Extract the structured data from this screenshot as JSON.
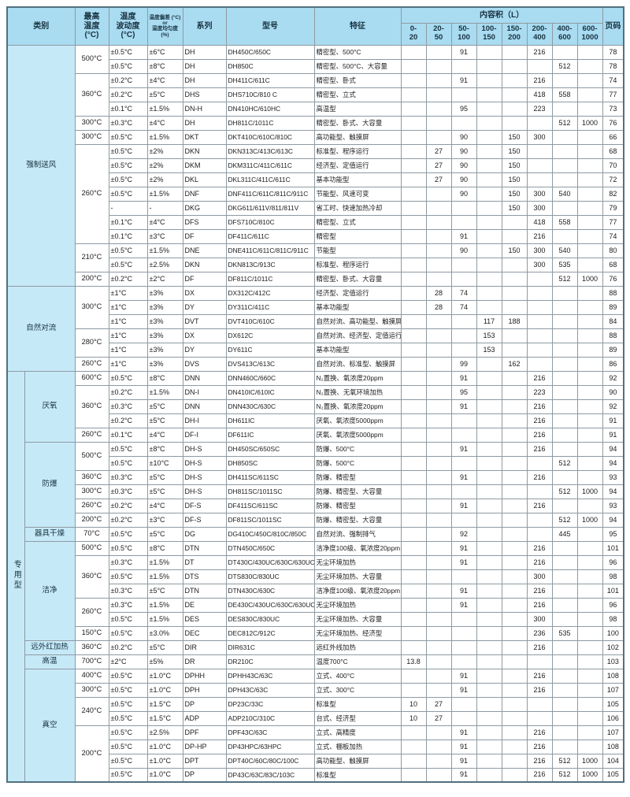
{
  "header": {
    "category": "类别",
    "max_temp": "最高\n温度\n(°C)",
    "fluctuation": "温度\n波动度\n(°C)",
    "deviation": "温度偏差 (°C) or\n温度均匀度 (%)",
    "series": "系列",
    "model": "型号",
    "feature": "特征",
    "capacity": "内容积（L）",
    "page": "页码",
    "ranges": [
      "0-\n20",
      "20-\n50",
      "50-\n100",
      "100-\n150",
      "150-\n200",
      "200-\n400",
      "400-\n600",
      "600-\n1000"
    ]
  },
  "colors": {
    "header_blue": "#a9dbf1",
    "category_blue": "#c6e9f8",
    "grid": "#8e9aa2",
    "outer_border": "#51707f"
  },
  "rows": [
    {
      "cat": {
        "label": "强制送风",
        "rowspan": 17,
        "colspan": 2
      },
      "temp": {
        "label": "500°C",
        "rowspan": 2
      },
      "fluct": "±0.5°C",
      "dev": "±6°C",
      "series": "DH",
      "model": "DH450C/650C",
      "feature": "精密型、500°C",
      "caps": [
        "",
        "",
        "91",
        "",
        "",
        "216",
        "",
        ""
      ],
      "page": "78"
    },
    {
      "fluct": "±0.5°C",
      "dev": "±8°C",
      "series": "DH",
      "model": "DH850C",
      "feature": "精密型、500°C、大容量",
      "caps": [
        "",
        "",
        "",
        "",
        "",
        "",
        "512",
        ""
      ],
      "page": "78"
    },
    {
      "temp": {
        "label": "360°C",
        "rowspan": 3
      },
      "fluct": "±0.2°C",
      "dev": "±4°C",
      "series": "DH",
      "model": "DH411C/611C",
      "feature": "精密型、卧式",
      "caps": [
        "",
        "",
        "91",
        "",
        "",
        "216",
        "",
        ""
      ],
      "page": "74"
    },
    {
      "fluct": "±0.2°C",
      "dev": "±5°C",
      "series": "DHS",
      "model": "DHS710C/810 C",
      "feature": "精密型、立式",
      "caps": [
        "",
        "",
        "",
        "",
        "",
        "418",
        "558",
        ""
      ],
      "page": "77"
    },
    {
      "fluct": "±0.1°C",
      "dev": "±1.5%",
      "series": "DN-H",
      "model": "DN410HC/610HC",
      "feature": "高温型",
      "caps": [
        "",
        "",
        "95",
        "",
        "",
        "223",
        "",
        ""
      ],
      "page": "73"
    },
    {
      "temp": {
        "label": "300°C",
        "rowspan": 1
      },
      "fluct": "±0.3°C",
      "dev": "±4°C",
      "series": "DH",
      "model": "DH811C/1011C",
      "feature": "精密型、卧式、大容量",
      "caps": [
        "",
        "",
        "",
        "",
        "",
        "",
        "512",
        "1000"
      ],
      "page": "76"
    },
    {
      "temp": {
        "label": "300°C",
        "rowspan": 1
      },
      "fluct": "±0.5°C",
      "dev": "±1.5%",
      "series": "DKT",
      "model": "DKT410C/610C/810C",
      "feature": "高功能型、触摸屏",
      "caps": [
        "",
        "",
        "90",
        "",
        "150",
        "300",
        "",
        ""
      ],
      "page": "66"
    },
    {
      "temp": {
        "label": "260°C",
        "rowspan": 7
      },
      "fluct": "±0.5°C",
      "dev": "±2%",
      "series": "DKN",
      "model": "DKN313C/413C/613C",
      "feature": "标准型、程序运行",
      "caps": [
        "",
        "27",
        "90",
        "",
        "150",
        "",
        "",
        ""
      ],
      "page": "68"
    },
    {
      "fluct": "±0.5°C",
      "dev": "±2%",
      "series": "DKM",
      "model": "DKM311C/411C/611C",
      "feature": "经济型、定值运行",
      "caps": [
        "",
        "27",
        "90",
        "",
        "150",
        "",
        "",
        ""
      ],
      "page": "70"
    },
    {
      "fluct": "±0.5°C",
      "dev": "±2%",
      "series": "DKL",
      "model": "DKL311C/411C/611C",
      "feature": "基本功能型",
      "caps": [
        "",
        "27",
        "90",
        "",
        "150",
        "",
        "",
        ""
      ],
      "page": "72"
    },
    {
      "fluct": "±0.5°C",
      "dev": "±1.5%",
      "series": "DNF",
      "model": "DNF411C/611C/811C/911C",
      "feature": "节能型、风速可变",
      "caps": [
        "",
        "",
        "90",
        "",
        "150",
        "300",
        "540",
        ""
      ],
      "page": "82"
    },
    {
      "fluct": "-",
      "dev": "-",
      "series": "DKG",
      "model": "DKG611/611V/811/811V",
      "feature": "省工时、快速加热冷却",
      "caps": [
        "",
        "",
        "",
        "",
        "150",
        "300",
        "",
        ""
      ],
      "page": "79"
    },
    {
      "fluct": "±0.1°C",
      "dev": "±4°C",
      "series": "DFS",
      "model": "DFS710C/810C",
      "feature": "精密型、立式",
      "caps": [
        "",
        "",
        "",
        "",
        "",
        "418",
        "558",
        ""
      ],
      "page": "77"
    },
    {
      "fluct": "±0.1°C",
      "dev": "±3°C",
      "series": "DF",
      "model": "DF411C/611C",
      "feature": "精密型",
      "caps": [
        "",
        "",
        "91",
        "",
        "",
        "216",
        "",
        ""
      ],
      "page": "74"
    },
    {
      "temp": {
        "label": "210°C",
        "rowspan": 2
      },
      "fluct": "±0.5°C",
      "dev": "±1.5%",
      "series": "DNE",
      "model": "DNE411C/611C/811C/911C",
      "feature": "节能型",
      "caps": [
        "",
        "",
        "90",
        "",
        "150",
        "300",
        "540",
        ""
      ],
      "page": "80"
    },
    {
      "fluct": "±0.5°C",
      "dev": "±2.5%",
      "series": "DKN",
      "model": "DKN813C/913C",
      "feature": "标准型、程序运行",
      "caps": [
        "",
        "",
        "",
        "",
        "",
        "300",
        "535",
        ""
      ],
      "page": "68"
    },
    {
      "temp": {
        "label": "200°C",
        "rowspan": 1
      },
      "fluct": "±0.2°C",
      "dev": "±2°C",
      "series": "DF",
      "model": "DF811C/1011C",
      "feature": "精密型、卧式、大容量",
      "caps": [
        "",
        "",
        "",
        "",
        "",
        "",
        "512",
        "1000"
      ],
      "page": "76"
    },
    {
      "cat": {
        "label": "自然对流",
        "rowspan": 6,
        "colspan": 2
      },
      "temp": {
        "label": "300°C",
        "rowspan": 3
      },
      "fluct": "±1°C",
      "dev": "±3%",
      "series": "DX",
      "model": "DX312C/412C",
      "feature": "经济型、定值运行",
      "caps": [
        "",
        "28",
        "74",
        "",
        "",
        "",
        "",
        ""
      ],
      "page": "88"
    },
    {
      "fluct": "±1°C",
      "dev": "±3%",
      "series": "DY",
      "model": "DY311C/411C",
      "feature": "基本功能型",
      "caps": [
        "",
        "28",
        "74",
        "",
        "",
        "",
        "",
        ""
      ],
      "page": "89"
    },
    {
      "fluct": "±1°C",
      "dev": "±3%",
      "series": "DVT",
      "model": "DVT410C/610C",
      "feature": "自然对流、高功能型、触摸屏",
      "caps": [
        "",
        "",
        "",
        "117",
        "188",
        "",
        "",
        ""
      ],
      "page": "84"
    },
    {
      "temp": {
        "label": "280°C",
        "rowspan": 2
      },
      "fluct": "±1°C",
      "dev": "±3%",
      "series": "DX",
      "model": "DX612C",
      "feature": "自然对流、经济型、定值运行",
      "caps": [
        "",
        "",
        "",
        "153",
        "",
        "",
        "",
        ""
      ],
      "page": "88"
    },
    {
      "fluct": "±1°C",
      "dev": "±3%",
      "series": "DY",
      "model": "DY611C",
      "feature": "基本功能型",
      "caps": [
        "",
        "",
        "",
        "153",
        "",
        "",
        "",
        ""
      ],
      "page": "89"
    },
    {
      "temp": {
        "label": "260°C",
        "rowspan": 1
      },
      "fluct": "±1°C",
      "dev": "±3%",
      "series": "DVS",
      "model": "DVS413C/613C",
      "feature": "自然对流、标准型、触摸屏",
      "caps": [
        "",
        "",
        "99",
        "",
        "162",
        "",
        "",
        ""
      ],
      "page": "86"
    },
    {
      "cat": {
        "label": "专用型",
        "rowspan": 29,
        "vertical": true
      },
      "subcat": {
        "label": "厌氧",
        "rowspan": 5
      },
      "temp": {
        "label": "600°C",
        "rowspan": 1
      },
      "fluct": "±0.5°C",
      "dev": "±8°C",
      "series": "DNN",
      "model": "DNN460C/660C",
      "feature": "N₂置换、氧浓度20ppm",
      "caps": [
        "",
        "",
        "91",
        "",
        "",
        "216",
        "",
        ""
      ],
      "page": "92"
    },
    {
      "temp": {
        "label": "360°C",
        "rowspan": 3
      },
      "fluct": "±0.2°C",
      "dev": "±1.5%",
      "series": "DN-I",
      "model": "DN410IC/610IC",
      "feature": "N₂置换、无氧环境加热",
      "caps": [
        "",
        "",
        "95",
        "",
        "",
        "223",
        "",
        ""
      ],
      "page": "90"
    },
    {
      "fluct": "±0.3°C",
      "dev": "±5°C",
      "series": "DNN",
      "model": "DNN430C/630C",
      "feature": "N₂置换、氧浓度20ppm",
      "caps": [
        "",
        "",
        "91",
        "",
        "",
        "216",
        "",
        ""
      ],
      "page": "92"
    },
    {
      "fluct": "±0.2°C",
      "dev": "±5°C",
      "series": "DH-I",
      "model": "DH611IC",
      "feature": "厌氧、氧浓度5000ppm",
      "caps": [
        "",
        "",
        "",
        "",
        "",
        "216",
        "",
        ""
      ],
      "page": "91"
    },
    {
      "temp": {
        "label": "260°C",
        "rowspan": 1
      },
      "fluct": "±0.1°C",
      "dev": "±4°C",
      "series": "DF-I",
      "model": "DF611IC",
      "feature": "厌氧、氧浓度5000ppm",
      "caps": [
        "",
        "",
        "",
        "",
        "",
        "216",
        "",
        ""
      ],
      "page": "91"
    },
    {
      "subcat": {
        "label": "防爆",
        "rowspan": 6
      },
      "temp": {
        "label": "500°C",
        "rowspan": 2
      },
      "fluct": "±0.5°C",
      "dev": "±8°C",
      "series": "DH-S",
      "model": "DH450SC/650SC",
      "feature": "防爆、500°C",
      "caps": [
        "",
        "",
        "91",
        "",
        "",
        "216",
        "",
        ""
      ],
      "page": "94"
    },
    {
      "fluct": "±0.5°C",
      "dev": "±10°C",
      "series": "DH-S",
      "model": "DH850SC",
      "feature": "防爆、500°C",
      "caps": [
        "",
        "",
        "",
        "",
        "",
        "",
        "512",
        ""
      ],
      "page": "94"
    },
    {
      "temp": {
        "label": "360°C",
        "rowspan": 1
      },
      "fluct": "±0.3°C",
      "dev": "±5°C",
      "series": "DH-S",
      "model": "DH411SC/611SC",
      "feature": "防爆、精密型",
      "caps": [
        "",
        "",
        "91",
        "",
        "",
        "216",
        "",
        ""
      ],
      "page": "93"
    },
    {
      "temp": {
        "label": "300°C",
        "rowspan": 1
      },
      "fluct": "±0.3°C",
      "dev": "±5°C",
      "series": "DH-S",
      "model": "DH811SC/1011SC",
      "feature": "防爆、精密型、大容量",
      "caps": [
        "",
        "",
        "",
        "",
        "",
        "",
        "512",
        "1000"
      ],
      "page": "94"
    },
    {
      "temp": {
        "label": "260°C",
        "rowspan": 1
      },
      "fluct": "±0.2°C",
      "dev": "±4°C",
      "series": "DF-S",
      "model": "DF411SC/611SC",
      "feature": "防爆、精密型",
      "caps": [
        "",
        "",
        "91",
        "",
        "",
        "216",
        "",
        ""
      ],
      "page": "93"
    },
    {
      "temp": {
        "label": "200°C",
        "rowspan": 1
      },
      "fluct": "±0.2°C",
      "dev": "±3°C",
      "series": "DF-S",
      "model": "DF811SC/1011SC",
      "feature": "防爆、精密型、大容量",
      "caps": [
        "",
        "",
        "",
        "",
        "",
        "",
        "512",
        "1000"
      ],
      "page": "94"
    },
    {
      "subcat": {
        "label": "器具干燥",
        "rowspan": 1
      },
      "temp": {
        "label": "70°C",
        "rowspan": 1
      },
      "fluct": "±0.5°C",
      "dev": "±5°C",
      "series": "DG",
      "model": "DG410C/450C/810C/850C",
      "feature": "自然对流、强制排气",
      "caps": [
        "",
        "",
        "92",
        "",
        "",
        "",
        "445",
        ""
      ],
      "page": "95"
    },
    {
      "subcat": {
        "label": "洁净",
        "rowspan": 7
      },
      "temp": {
        "label": "500°C",
        "rowspan": 1
      },
      "fluct": "±0.5°C",
      "dev": "±8°C",
      "series": "DTN",
      "model": "DTN450C/650C",
      "feature": "洁净度100级、氧浓度20ppm",
      "caps": [
        "",
        "",
        "91",
        "",
        "",
        "216",
        "",
        ""
      ],
      "page": "101"
    },
    {
      "temp": {
        "label": "360°C",
        "rowspan": 3
      },
      "fluct": "±0.3°C",
      "dev": "±1.5%",
      "series": "DT",
      "model": "DT430C/430UC/630C/630UC",
      "feature": "无尘环境加热",
      "caps": [
        "",
        "",
        "91",
        "",
        "",
        "216",
        "",
        ""
      ],
      "page": "96"
    },
    {
      "fluct": "±0.5°C",
      "dev": "±1.5%",
      "series": "DTS",
      "model": "DTS830C/830UC",
      "feature": "无尘环境加热、大容量",
      "caps": [
        "",
        "",
        "",
        "",
        "",
        "300",
        "",
        ""
      ],
      "page": "98"
    },
    {
      "fluct": "±0.3°C",
      "dev": "±5°C",
      "series": "DTN",
      "model": "DTN430C/630C",
      "feature": "洁净度100级、氧浓度20ppm",
      "caps": [
        "",
        "",
        "91",
        "",
        "",
        "216",
        "",
        ""
      ],
      "page": "101"
    },
    {
      "temp": {
        "label": "260°C",
        "rowspan": 2
      },
      "fluct": "±0.3°C",
      "dev": "±1.5%",
      "series": "DE",
      "model": "DE430C/430UC/630C/630UC",
      "feature": "无尘环境加热",
      "caps": [
        "",
        "",
        "91",
        "",
        "",
        "216",
        "",
        ""
      ],
      "page": "96"
    },
    {
      "fluct": "±0.5°C",
      "dev": "±1.5%",
      "series": "DES",
      "model": "DES830C/830UC",
      "feature": "无尘环境加热、大容量",
      "caps": [
        "",
        "",
        "",
        "",
        "",
        "300",
        "",
        ""
      ],
      "page": "98"
    },
    {
      "temp": {
        "label": "150°C",
        "rowspan": 1
      },
      "fluct": "±0.5°C",
      "dev": "±3.0%",
      "series": "DEC",
      "model": "DEC812C/912C",
      "feature": "无尘环境加热、经济型",
      "caps": [
        "",
        "",
        "",
        "",
        "",
        "236",
        "535",
        ""
      ],
      "page": "100"
    },
    {
      "subcat": {
        "label": "远外红加热",
        "rowspan": 1
      },
      "temp": {
        "label": "360°C",
        "rowspan": 1
      },
      "fluct": "±0.2°C",
      "dev": "±5°C",
      "series": "DIR",
      "model": "DIR631C",
      "feature": "远红外线加热",
      "caps": [
        "",
        "",
        "",
        "",
        "",
        "216",
        "",
        ""
      ],
      "page": "102"
    },
    {
      "subcat": {
        "label": "高温",
        "rowspan": 1
      },
      "temp": {
        "label": "700°C",
        "rowspan": 1
      },
      "fluct": "±2°C",
      "dev": "±5%",
      "series": "DR",
      "model": "DR210C",
      "feature": "温度700°C",
      "caps": [
        "13.8",
        "",
        "",
        "",
        "",
        "",
        "",
        ""
      ],
      "page": "103"
    },
    {
      "subcat": {
        "label": "真空",
        "rowspan": 8
      },
      "temp": {
        "label": "400°C",
        "rowspan": 1
      },
      "fluct": "±0.5°C",
      "dev": "±1.0°C",
      "series": "DPHH",
      "model": "DPHH43C/63C",
      "feature": "立式、400°C",
      "caps": [
        "",
        "",
        "91",
        "",
        "",
        "216",
        "",
        ""
      ],
      "page": "108"
    },
    {
      "temp": {
        "label": "300°C",
        "rowspan": 1
      },
      "fluct": "±0.5°C",
      "dev": "±1.0°C",
      "series": "DPH",
      "model": "DPH43C/63C",
      "feature": "立式、300°C",
      "caps": [
        "",
        "",
        "91",
        "",
        "",
        "216",
        "",
        ""
      ],
      "page": "107"
    },
    {
      "temp": {
        "label": "240°C",
        "rowspan": 2
      },
      "fluct": "±0.5°C",
      "dev": "±1.5°C",
      "series": "DP",
      "model": "DP23C/33C",
      "feature": "标准型",
      "caps": [
        "10",
        "27",
        "",
        "",
        "",
        "",
        "",
        ""
      ],
      "page": "105"
    },
    {
      "fluct": "±0.5°C",
      "dev": "±1.5°C",
      "series": "ADP",
      "model": "ADP210C/310C",
      "feature": "台式、经济型",
      "caps": [
        "10",
        "27",
        "",
        "",
        "",
        "",
        "",
        ""
      ],
      "page": "106"
    },
    {
      "temp": {
        "label": "200°C",
        "rowspan": 4
      },
      "fluct": "±0.5°C",
      "dev": "±2.5%",
      "series": "DPF",
      "model": "DPF43C/63C",
      "feature": "立式、高精度",
      "caps": [
        "",
        "",
        "91",
        "",
        "",
        "216",
        "",
        ""
      ],
      "page": "107"
    },
    {
      "fluct": "±0.5°C",
      "dev": "±1.0°C",
      "series": "DP-HP",
      "model": "DP43HPC/63HPC",
      "feature": "立式、棚板加热",
      "caps": [
        "",
        "",
        "91",
        "",
        "",
        "216",
        "",
        ""
      ],
      "page": "108"
    },
    {
      "fluct": "±0.5°C",
      "dev": "±1.0°C",
      "series": "DPT",
      "model": "DPT40C/60C/80C/100C",
      "feature": "高功能型、触摸屏",
      "caps": [
        "",
        "",
        "91",
        "",
        "",
        "216",
        "512",
        "1000"
      ],
      "page": "104"
    },
    {
      "fluct": "±0.5°C",
      "dev": "±1.0°C",
      "series": "DP",
      "model": "DP43C/63C/83C/103C",
      "feature": "标准型",
      "caps": [
        "",
        "",
        "91",
        "",
        "",
        "216",
        "512",
        "1000"
      ],
      "page": "105"
    }
  ]
}
